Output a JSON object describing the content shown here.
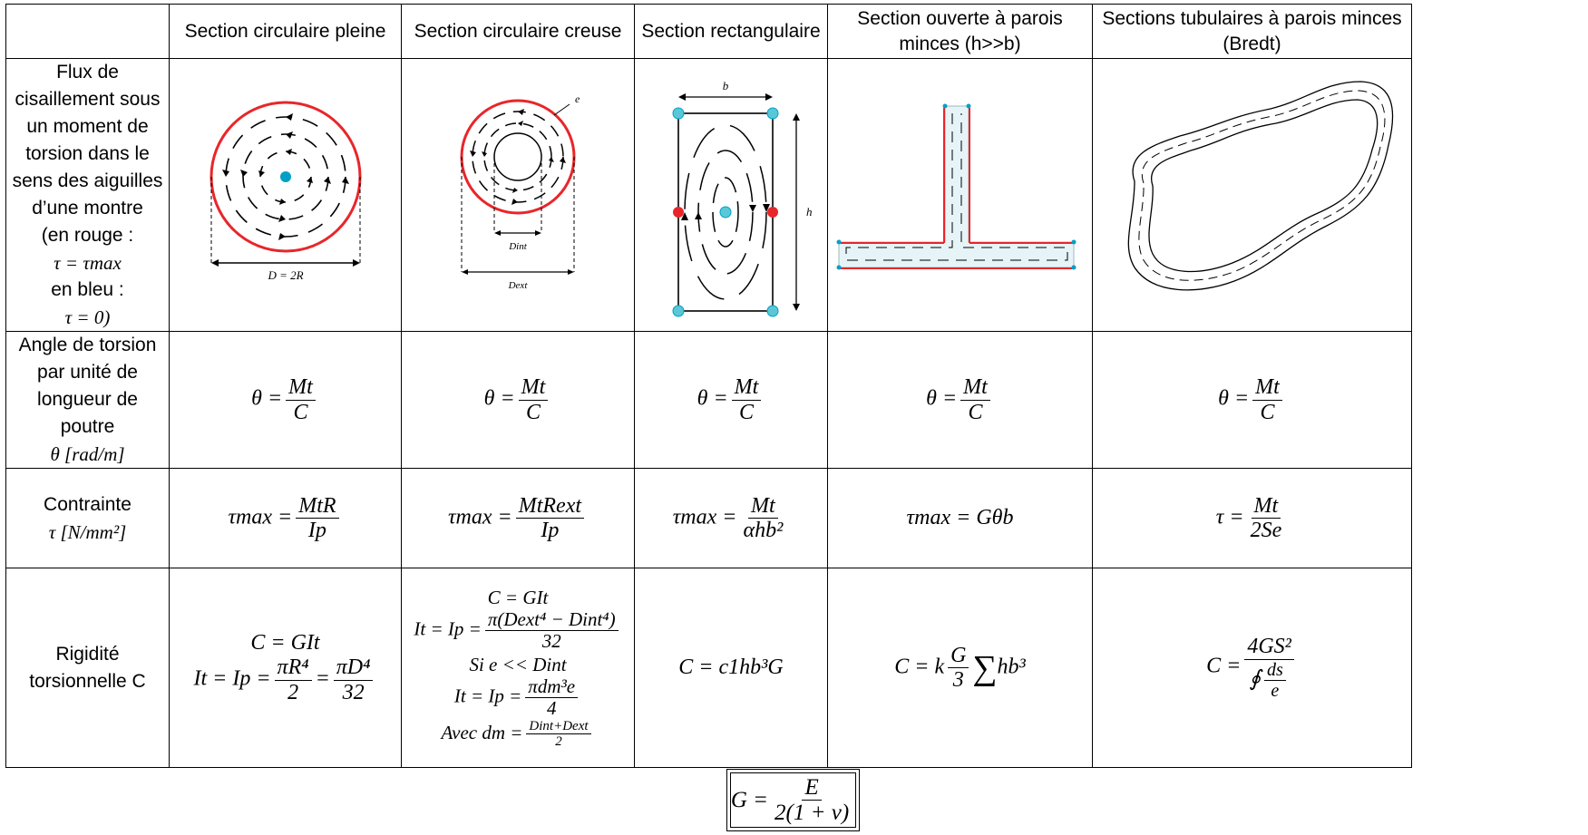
{
  "headers": [
    "",
    "Section circulaire pleine",
    "Section circulaire creuse",
    "Section rectangulaire",
    "Section ouverte à parois minces (h>>b)",
    "Sections tubulaires à parois minces (Bredt)"
  ],
  "rows": {
    "flux": {
      "label_lines": [
        "Flux de",
        "cisaillement sous",
        "un moment de",
        "torsion dans le",
        "sens des aiguilles",
        "d’une montre",
        "(en rouge :"
      ],
      "label_tau_max": "τ = τmax",
      "label_blue": "en bleu :",
      "label_tau_zero": "τ = 0)",
      "fig_labels": {
        "full_D": "D = 2R",
        "hollow_e": "e",
        "hollow_Dint": "Dint",
        "hollow_Dext": "Dext",
        "rect_b": "b",
        "rect_h": "h"
      }
    },
    "angle": {
      "label_lines": [
        "Angle de torsion",
        "par unité de",
        "longueur de",
        "poutre"
      ],
      "label_unit": "θ [rad/m]",
      "formula_lhs": "θ =",
      "formula_num": "Mt",
      "formula_den": "C"
    },
    "stress": {
      "label_line": "Contrainte",
      "label_unit": "τ [N/mm²]",
      "full": {
        "lhs": "τmax =",
        "num": "MtR",
        "den": "Ip"
      },
      "hollow": {
        "lhs": "τmax =",
        "num": "MtRext",
        "den": "Ip"
      },
      "rect": {
        "lhs": "τmax =",
        "num": "Mt",
        "den": "αhb²"
      },
      "open": {
        "text": "τmax = Gθb"
      },
      "bredt": {
        "lhs": "τ =",
        "num": "Mt",
        "den": "2Se"
      }
    },
    "rigidity": {
      "label_lines": [
        "Rigidité",
        "torsionnelle C"
      ],
      "full": {
        "line1": "C = GIt",
        "line2_lhs": "It = Ip =",
        "num1": "πR⁴",
        "den1": "2",
        "num2": "πD⁴",
        "den2": "32"
      },
      "hollow": {
        "line1": "C = GIt",
        "line2_lhs": "It = Ip =",
        "line2_num": "π(Dext⁴ − Dint⁴)",
        "line2_den": "32",
        "line3": "Si e << Dint",
        "line4_lhs": "It = Ip =",
        "line4_num": "πdm³e",
        "line4_den": "4",
        "line5_lhs": "Avec dm =",
        "line5_num": "Dint+Dext",
        "line5_den": "2"
      },
      "rect": {
        "text": "C = c1hb³G"
      },
      "open": {
        "lhs": "C = k",
        "num": "G",
        "den": "3",
        "sum": "∑",
        "rhs": "hb³"
      },
      "bredt": {
        "lhs": "C =",
        "num": "4GS²",
        "den_prefix": "∮",
        "den_num": "ds",
        "den_den": "e"
      }
    }
  },
  "footer": {
    "lhs": "G =",
    "num": "E",
    "den": "2(1 + ν)"
  },
  "colors": {
    "red": "#e8262a",
    "blue": "#00a0c6",
    "lightblue": "#5bc7d6"
  }
}
